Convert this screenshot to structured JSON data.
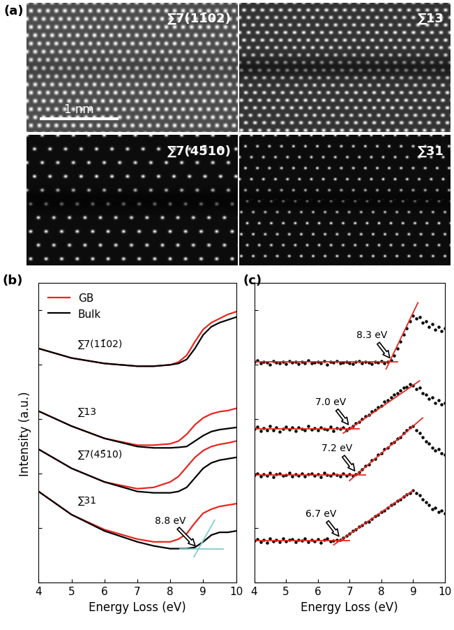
{
  "panel_a": {
    "label": "(a)",
    "scale_bar": "1 nm",
    "images": [
      {
        "label": "∑7(11̄02)"
      },
      {
        "label": "∑13"
      },
      {
        "label": "∑7(45̄10)"
      },
      {
        "label": "∑31"
      }
    ]
  },
  "chart_data": [
    {
      "type": "line",
      "panel_label": "(b)",
      "xlabel": "Energy Loss (eV)",
      "ylabel": "Intensity (a.u.)",
      "xlim": [
        4,
        10
      ],
      "ylim": [
        0,
        11
      ],
      "xticks": [
        4,
        5,
        6,
        7,
        8,
        9,
        10
      ],
      "yticks": [
        0,
        2,
        4,
        6,
        8,
        10
      ],
      "tick_labels": "x",
      "legend": "upper left",
      "x": [
        4,
        5,
        6,
        7,
        7.5,
        8,
        8.25,
        8.5,
        8.75,
        9,
        9.25,
        9.5,
        9.75,
        10
      ],
      "groups": [
        {
          "label": "∑7(11̄02)",
          "series": [
            {
              "name": "GB",
              "color": "#e8251f",
              "values": [
                8.6,
                8.25,
                8.05,
                7.95,
                7.95,
                8.0,
                8.1,
                8.35,
                8.85,
                9.3,
                9.55,
                9.7,
                9.85,
                9.95
              ]
            },
            {
              "name": "Bulk",
              "color": "#000000",
              "values": [
                8.6,
                8.25,
                8.05,
                7.95,
                7.95,
                8.0,
                8.05,
                8.2,
                8.6,
                9.1,
                9.4,
                9.55,
                9.65,
                9.75
              ]
            }
          ]
        },
        {
          "label": "∑13",
          "series": [
            {
              "name": "GB",
              "color": "#e8251f",
              "values": [
                6.3,
                5.75,
                5.3,
                5.05,
                5.05,
                5.1,
                5.2,
                5.45,
                5.8,
                6.05,
                6.2,
                6.28,
                6.32,
                6.4
              ]
            },
            {
              "name": "Bulk",
              "color": "#000000",
              "values": [
                6.3,
                5.75,
                5.3,
                5.0,
                4.95,
                4.95,
                4.97,
                5.0,
                5.2,
                5.4,
                5.55,
                5.62,
                5.66,
                5.7
              ]
            }
          ]
        },
        {
          "label": "∑7(45̄10)",
          "series": [
            {
              "name": "GB",
              "color": "#e8251f",
              "values": [
                4.9,
                4.2,
                3.7,
                3.45,
                3.5,
                3.7,
                3.9,
                4.25,
                4.6,
                4.85,
                5.0,
                5.08,
                5.13,
                5.2
              ]
            },
            {
              "name": "Bulk",
              "color": "#000000",
              "values": [
                4.9,
                4.2,
                3.7,
                3.35,
                3.3,
                3.3,
                3.35,
                3.5,
                3.85,
                4.2,
                4.4,
                4.5,
                4.55,
                4.6
              ]
            }
          ]
        },
        {
          "label": "∑31",
          "series": [
            {
              "name": "GB",
              "color": "#e8251f",
              "values": [
                3.35,
                2.5,
                1.95,
                1.6,
                1.5,
                1.5,
                1.6,
                1.8,
                2.2,
                2.55,
                2.7,
                2.8,
                2.85,
                2.9
              ]
            },
            {
              "name": "Bulk",
              "color": "#000000",
              "values": [
                3.35,
                2.5,
                1.9,
                1.5,
                1.35,
                1.25,
                1.25,
                1.25,
                1.3,
                1.5,
                1.75,
                1.85,
                1.85,
                1.9
              ]
            }
          ]
        }
      ],
      "annotation": {
        "text": "8.8 eV",
        "x": 8.8,
        "y": 1.3
      },
      "fit_lines": {
        "color": "#7fcfcf",
        "lines": [
          {
            "x": [
              8.3,
              9.6
            ],
            "y": [
              1.25,
              1.25
            ]
          },
          {
            "x": [
              8.72,
              9.35
            ],
            "y": [
              0.95,
              2.3
            ]
          }
        ]
      }
    },
    {
      "type": "scatter",
      "panel_label": "(c)",
      "xlabel": "Energy Loss (eV)",
      "xlim": [
        4,
        10
      ],
      "ylim": [
        0,
        11
      ],
      "xticks": [
        4,
        5,
        6,
        7,
        8,
        9,
        10
      ],
      "yticks": [
        0,
        2,
        4,
        6,
        8,
        10
      ],
      "tick_labels": "x",
      "x": [
        4.0,
        4.1,
        4.2,
        4.3,
        4.4,
        4.5,
        4.6,
        4.7,
        4.8,
        4.9,
        5.0,
        5.1,
        5.2,
        5.3,
        5.4,
        5.5,
        5.6,
        5.7,
        5.8,
        5.9,
        6.0,
        6.1,
        6.2,
        6.3,
        6.4,
        6.5,
        6.6,
        6.7,
        6.8,
        6.9,
        7.0,
        7.1,
        7.2,
        7.3,
        7.4,
        7.5,
        7.6,
        7.7,
        7.8,
        7.9,
        8.0,
        8.1,
        8.2,
        8.3,
        8.4,
        8.5,
        8.6,
        8.7,
        8.8,
        8.9,
        9.0,
        9.1,
        9.2,
        9.3,
        9.4,
        9.5,
        9.6,
        9.7,
        9.8,
        9.9,
        10.0
      ],
      "series": [
        {
          "color": "#000000",
          "onset": 8.3,
          "onset_label": "8.3 eV",
          "values": [
            8.1,
            8.15,
            8.05,
            8.12,
            8.08,
            8.02,
            8.14,
            8.09,
            8.06,
            8.11,
            8.04,
            8.13,
            8.08,
            8.1,
            8.03,
            8.12,
            8.07,
            8.15,
            8.05,
            8.09,
            8.11,
            8.06,
            8.13,
            8.02,
            8.1,
            8.08,
            8.14,
            8.05,
            8.09,
            8.12,
            8.07,
            8.04,
            8.11,
            8.13,
            8.06,
            8.1,
            8.08,
            8.03,
            8.12,
            8.09,
            8.14,
            8.07,
            8.11,
            8.15,
            8.35,
            8.6,
            8.85,
            9.1,
            9.35,
            9.6,
            9.8,
            9.7,
            9.75,
            9.55,
            9.6,
            9.4,
            9.5,
            9.3,
            9.4,
            9.25,
            9.35
          ],
          "fit_lines": [
            {
              "x": [
                4.0,
                8.5
              ],
              "y": [
                8.1,
                8.1
              ]
            },
            {
              "x": [
                8.15,
                9.15
              ],
              "y": [
                7.85,
                10.28
              ]
            }
          ]
        },
        {
          "color": "#000000",
          "onset": 7.0,
          "onset_label": "7.0 eV",
          "values": [
            5.65,
            5.72,
            5.58,
            5.68,
            5.61,
            5.75,
            5.6,
            5.7,
            5.55,
            5.66,
            5.73,
            5.62,
            5.69,
            5.57,
            5.71,
            5.64,
            5.6,
            5.74,
            5.63,
            5.68,
            5.59,
            5.7,
            5.66,
            5.62,
            5.73,
            5.58,
            5.67,
            5.64,
            5.7,
            5.6,
            5.68,
            5.75,
            5.85,
            5.9,
            6.0,
            6.1,
            6.15,
            6.3,
            6.35,
            6.45,
            6.5,
            6.65,
            6.7,
            6.8,
            6.9,
            6.95,
            7.05,
            7.15,
            7.2,
            7.3,
            7.25,
            7.1,
            7.15,
            6.95,
            6.9,
            6.75,
            6.8,
            6.6,
            6.7,
            6.55,
            6.6
          ],
          "fit_lines": [
            {
              "x": [
                4.0,
                7.3
              ],
              "y": [
                5.65,
                5.65
              ]
            },
            {
              "x": [
                6.8,
                9.2
              ],
              "y": [
                5.49,
                7.41
              ]
            }
          ]
        },
        {
          "color": "#000000",
          "onset": 7.2,
          "onset_label": "7.2 eV",
          "values": [
            3.95,
            4.0,
            3.9,
            3.98,
            3.92,
            4.03,
            3.88,
            3.97,
            4.01,
            3.93,
            3.96,
            4.04,
            3.9,
            3.99,
            3.94,
            4.02,
            3.91,
            3.97,
            4.0,
            3.93,
            3.98,
            3.89,
            4.03,
            3.95,
            3.92,
            4.0,
            3.96,
            3.91,
            4.02,
            3.94,
            3.99,
            3.93,
            3.97,
            4.05,
            4.15,
            4.3,
            4.35,
            4.5,
            4.55,
            4.7,
            4.75,
            4.9,
            4.95,
            5.1,
            5.15,
            5.3,
            5.35,
            5.5,
            5.6,
            5.7,
            5.75,
            5.6,
            5.5,
            5.35,
            5.2,
            5.1,
            4.95,
            4.85,
            4.9,
            4.75,
            4.7
          ],
          "fit_lines": [
            {
              "x": [
                4.0,
                7.5
              ],
              "y": [
                3.95,
                3.95
              ]
            },
            {
              "x": [
                7.0,
                9.3
              ],
              "y": [
                3.75,
                6.05
              ]
            }
          ]
        },
        {
          "color": "#000000",
          "onset": 6.7,
          "onset_label": "6.7 eV",
          "values": [
            1.55,
            1.6,
            1.5,
            1.58,
            1.48,
            1.62,
            1.53,
            1.57,
            1.5,
            1.63,
            1.52,
            1.56,
            1.6,
            1.49,
            1.58,
            1.54,
            1.61,
            1.5,
            1.57,
            1.53,
            1.59,
            1.48,
            1.56,
            1.62,
            1.51,
            1.55,
            1.58,
            1.57,
            1.65,
            1.72,
            1.8,
            1.9,
            1.95,
            2.05,
            2.1,
            2.2,
            2.25,
            2.35,
            2.45,
            2.5,
            2.6,
            2.65,
            2.75,
            2.85,
            2.9,
            3.0,
            3.05,
            3.15,
            3.25,
            3.3,
            3.4,
            3.3,
            3.2,
            3.05,
            2.95,
            2.85,
            2.7,
            2.75,
            2.6,
            2.65,
            2.55
          ],
          "fit_lines": [
            {
              "x": [
                4.0,
                7.0
              ],
              "y": [
                1.55,
                1.55
              ]
            },
            {
              "x": [
                6.5,
                9.0
              ],
              "y": [
                1.39,
                3.39
              ]
            }
          ]
        }
      ],
      "fit_color": "#e8251f"
    }
  ]
}
